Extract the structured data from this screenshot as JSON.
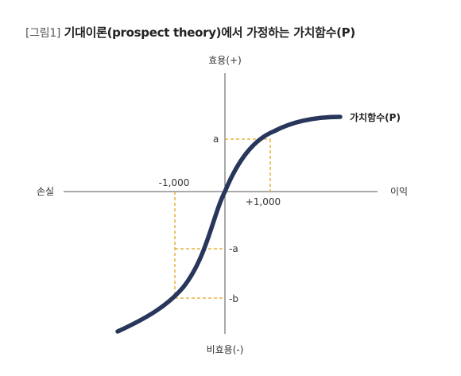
{
  "title": {
    "prefix": "[그림1]",
    "text": "기대이론(prospect theory)에서 가정하는 가치함수(P)"
  },
  "axes": {
    "y_pos": "효용(+)",
    "y_neg": "비효용(-)",
    "x_neg": "손실",
    "x_pos": "이익"
  },
  "ticks": {
    "x_neg": "-1,000",
    "x_pos": "+1,000",
    "y_a": "a",
    "y_neg_a": "-a",
    "y_neg_b": "-b"
  },
  "curve_label": "가치함수(P)",
  "colors": {
    "curve": "#27365a",
    "guide": "#e3a521",
    "axis": "#555555"
  }
}
